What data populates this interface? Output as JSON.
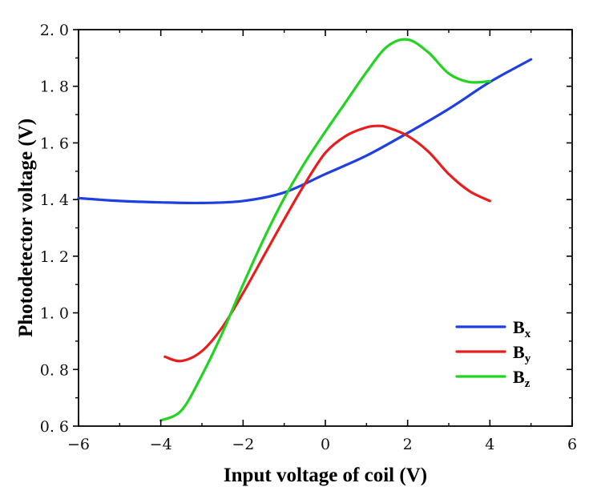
{
  "chart_data": {
    "type": "line",
    "title": "",
    "xlabel": "Input voltage of coil (V)",
    "ylabel": "Photodetector voltage (V)",
    "xlim": [
      -6,
      6
    ],
    "ylim": [
      0.6,
      2.0
    ],
    "xticks": [
      -6,
      -4,
      -2,
      0,
      2,
      4,
      6
    ],
    "xtick_labels": [
      "−6",
      "−4",
      "−2",
      "0",
      "2",
      "4",
      "6"
    ],
    "yticks": [
      0.6,
      0.8,
      1.0,
      1.2,
      1.4,
      1.6,
      1.8,
      2.0
    ],
    "ytick_labels": [
      "0. 6",
      "0. 8",
      "1. 0",
      "1. 2",
      "1. 4",
      "1. 6",
      "1. 8",
      "2. 0"
    ],
    "grid": false,
    "legend_position": "bottom-right",
    "series": [
      {
        "name": "B",
        "subscript": "x",
        "color": "#1f3fe0",
        "x": [
          -6,
          -5,
          -4,
          -3,
          -2,
          -1,
          0,
          1,
          2,
          3,
          4,
          5
        ],
        "y": [
          1.405,
          1.395,
          1.39,
          1.388,
          1.395,
          1.425,
          1.49,
          1.555,
          1.635,
          1.72,
          1.815,
          1.895
        ]
      },
      {
        "name": "B",
        "subscript": "y",
        "color": "#e81e1e",
        "x": [
          -3.9,
          -3.5,
          -3.0,
          -2.5,
          -2.0,
          -1.5,
          -1.0,
          -0.5,
          0.0,
          0.5,
          1.0,
          1.3,
          1.5,
          2.0,
          2.5,
          3.0,
          3.5,
          4.0
        ],
        "y": [
          0.845,
          0.83,
          0.865,
          0.95,
          1.07,
          1.2,
          1.33,
          1.455,
          1.565,
          1.625,
          1.655,
          1.66,
          1.655,
          1.625,
          1.57,
          1.49,
          1.43,
          1.395
        ]
      },
      {
        "name": "B",
        "subscript": "z",
        "color": "#22d422",
        "x": [
          -4.0,
          -3.5,
          -3.0,
          -2.5,
          -2.0,
          -1.5,
          -1.0,
          -0.5,
          0.0,
          0.5,
          1.0,
          1.5,
          2.0,
          2.5,
          3.0,
          3.5,
          4.0
        ],
        "y": [
          0.62,
          0.655,
          0.78,
          0.93,
          1.1,
          1.26,
          1.405,
          1.53,
          1.64,
          1.745,
          1.85,
          1.94,
          1.965,
          1.92,
          1.845,
          1.815,
          1.818
        ]
      }
    ]
  }
}
